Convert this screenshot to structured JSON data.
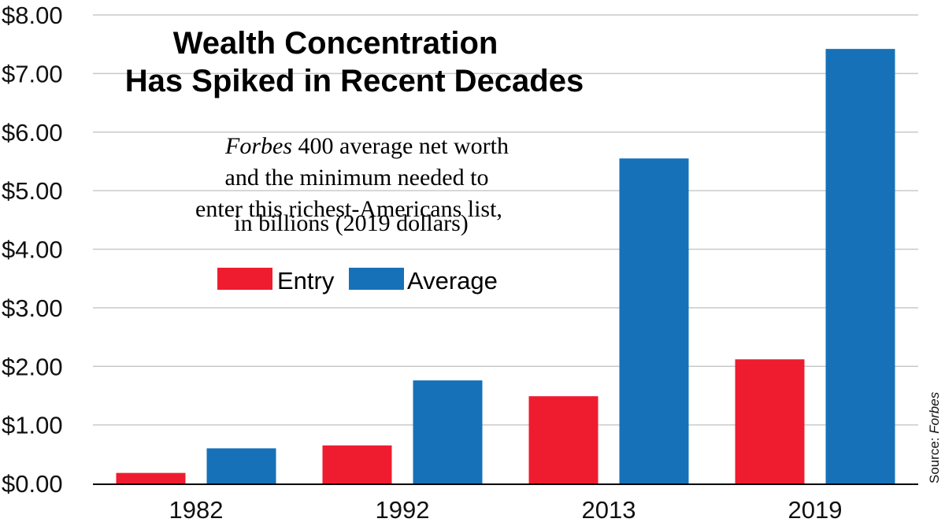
{
  "chart_data": {
    "type": "bar",
    "title": [
      "Wealth Concentration",
      "Has Spiked in Recent Decades"
    ],
    "subtitle": [
      {
        "italic": "Forbes",
        "rest": " 400 average net worth"
      },
      {
        "italic": "",
        "rest": "and the minimum needed to"
      },
      {
        "italic": "",
        "rest": "enter this richest-Americans list,"
      },
      {
        "italic": "",
        "rest": "in billions (2019 dollars)"
      }
    ],
    "categories": [
      "1982",
      "1992",
      "2013",
      "2019"
    ],
    "series": [
      {
        "name": "Entry",
        "color": "#ee1c2e",
        "values": [
          0.18,
          0.65,
          1.49,
          2.12
        ]
      },
      {
        "name": "Average",
        "color": "#1671b8",
        "values": [
          0.6,
          1.76,
          5.55,
          7.42
        ]
      }
    ],
    "yticks": [
      "$0.00",
      "$1.00",
      "$2.00",
      "$3.00",
      "$4.00",
      "$5.00",
      "$6.00",
      "$7.00",
      "$8.00"
    ],
    "ylim": [
      0,
      8
    ],
    "grid": true,
    "legend_position": "center-left",
    "source": {
      "label": "Source: ",
      "italic": "Forbes"
    }
  }
}
